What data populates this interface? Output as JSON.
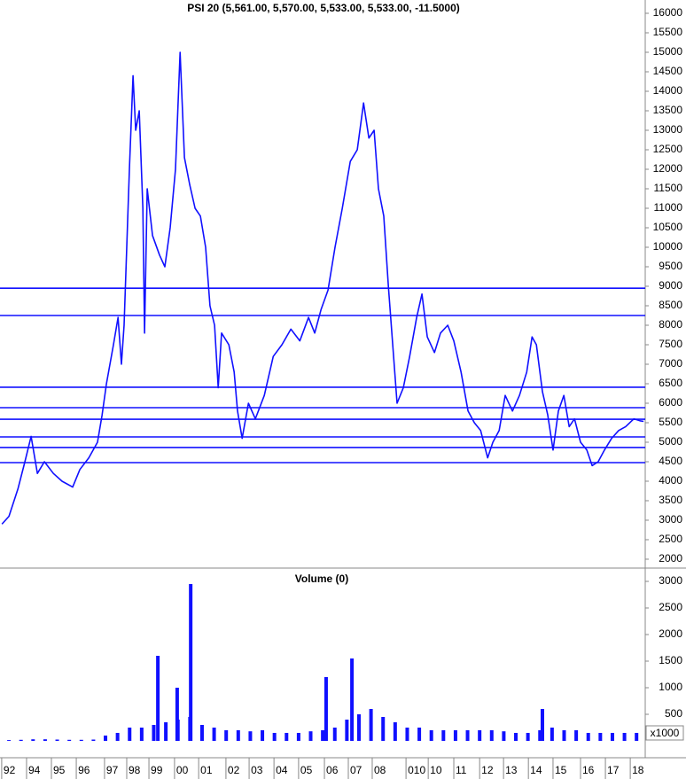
{
  "chart_data": [
    {
      "type": "line",
      "title": "PSI 20 (5,561.00, 5,570.00, 5,533.00, 5,533.00, -11.5000)",
      "color": "#1010ff",
      "x": [
        1991.71,
        1992.0,
        1992.37,
        1992.66,
        1992.92,
        1993.18,
        1993.47,
        1993.84,
        1994.2,
        1994.64,
        1994.94,
        1995.31,
        1995.67,
        1995.86,
        1996.04,
        1996.33,
        1996.52,
        1996.66,
        1996.77,
        1996.99,
        1997.14,
        1997.25,
        1997.4,
        1997.55,
        1997.62,
        1997.73,
        1997.95,
        1998.24,
        1998.46,
        1998.68,
        1998.9,
        1999.09,
        1999.27,
        1999.49,
        1999.71,
        1999.93,
        2000.15,
        2000.33,
        2000.52,
        2000.67,
        2000.81,
        2001.11,
        2001.33,
        2001.47,
        2001.66,
        2001.92,
        2002.21,
        2002.58,
        2002.95,
        2003.31,
        2003.68,
        2004.05,
        2004.41,
        2004.67,
        2004.93,
        2005.22,
        2005.51,
        2005.81,
        2006.14,
        2006.43,
        2006.69,
        2006.91,
        2007.13,
        2007.31,
        2007.53,
        2007.72,
        2007.9,
        2008.08,
        2008.34,
        2008.6,
        2008.89,
        2009.11,
        2009.33,
        2009.63,
        2009.88,
        2010.18,
        2010.43,
        2010.73,
        2011.02,
        2011.28,
        2011.54,
        2011.83,
        2012.05,
        2012.31,
        2012.56,
        2012.86,
        2013.15,
        2013.45,
        2013.67,
        2013.85,
        2014.1,
        2014.32,
        2014.54,
        2014.76,
        2014.99,
        2015.21,
        2015.43,
        2015.68,
        2015.94,
        2016.16,
        2016.41,
        2016.67,
        2016.97,
        2017.26,
        2017.55,
        2017.89,
        2018.14,
        2018.29
      ],
      "values": [
        2900,
        3100,
        3800,
        4500,
        5150,
        4200,
        4500,
        4200,
        4000,
        3850,
        4300,
        4600,
        5000,
        5700,
        6500,
        7500,
        8200,
        7000,
        8000,
        12000,
        14400,
        13000,
        13500,
        11000,
        7800,
        11500,
        10300,
        9800,
        9500,
        10500,
        12000,
        15000,
        12300,
        11600,
        11000,
        10800,
        10000,
        8500,
        8000,
        6400,
        7800,
        7500,
        6800,
        5800,
        5100,
        6000,
        5600,
        6200,
        7200,
        7500,
        7900,
        7600,
        8200,
        7800,
        8400,
        8900,
        10000,
        11000,
        12200,
        12500,
        13700,
        12800,
        13000,
        11500,
        10800,
        9000,
        7500,
        6000,
        6400,
        7200,
        8200,
        8800,
        7700,
        7300,
        7800,
        8000,
        7600,
        6800,
        5800,
        5500,
        5300,
        4600,
        5000,
        5300,
        6200,
        5800,
        6200,
        6800,
        7700,
        7500,
        6300,
        5700,
        4800,
        5800,
        6200,
        5400,
        5600,
        5000,
        4800,
        4400,
        4500,
        4800,
        5100,
        5300,
        5400,
        5600,
        5550,
        5533
      ],
      "hlines": [
        8950,
        8250,
        6410,
        5886,
        5590,
        5136,
        4864,
        4477
      ],
      "xlim": [
        1991.63,
        2018.36
      ],
      "ylim": [
        1795,
        16341
      ],
      "yticks": [
        2000,
        2500,
        3000,
        3500,
        4000,
        4500,
        5000,
        5500,
        6000,
        6500,
        7000,
        7500,
        8000,
        8500,
        9000,
        9500,
        10000,
        10500,
        11000,
        11500,
        12000,
        12500,
        13000,
        13500,
        14000,
        14500,
        15000,
        15500,
        16000
      ]
    },
    {
      "type": "bar",
      "title": "Volume (0)",
      "color": "#1010ff",
      "unit_label": "x1000",
      "x": [
        1992.0,
        1992.5,
        1993.0,
        1993.5,
        1994.0,
        1994.5,
        1995.0,
        1995.5,
        1996.0,
        1996.5,
        1997.0,
        1997.5,
        1998.0,
        1998.17,
        1998.5,
        1998.97,
        1999.0,
        1999.5,
        1999.53,
        2000.0,
        2000.5,
        2001.0,
        2001.5,
        2002.0,
        2002.5,
        2003.0,
        2003.5,
        2004.0,
        2004.5,
        2005.0,
        2005.14,
        2005.5,
        2006.0,
        2006.21,
        2006.5,
        2007.0,
        2007.5,
        2008.0,
        2008.5,
        2009.0,
        2009.5,
        2010.0,
        2010.5,
        2011.0,
        2011.5,
        2012.0,
        2012.5,
        2013.0,
        2013.5,
        2014.0,
        2014.1,
        2014.5,
        2015.0,
        2015.5,
        2016.0,
        2016.5,
        2017.0,
        2017.5,
        2018.0
      ],
      "values": [
        15,
        20,
        30,
        30,
        25,
        20,
        20,
        25,
        100,
        150,
        250,
        250,
        300,
        1600,
        350,
        1000,
        400,
        450,
        2950,
        300,
        250,
        200,
        200,
        180,
        200,
        150,
        150,
        150,
        180,
        200,
        1200,
        250,
        400,
        1550,
        500,
        600,
        450,
        350,
        250,
        250,
        200,
        200,
        200,
        200,
        200,
        200,
        180,
        150,
        150,
        200,
        600,
        250,
        200,
        200,
        150,
        150,
        150,
        150,
        150
      ],
      "xlim": [
        1991.63,
        2018.36
      ],
      "ylim": [
        -317,
        3217
      ],
      "yticks": [
        500,
        1000,
        1500,
        2000,
        2500,
        3000
      ],
      "xticks": [
        {
          "value": 1991.7,
          "label": "92"
        },
        {
          "value": 1992.73,
          "label": "94"
        },
        {
          "value": 1993.76,
          "label": "95"
        },
        {
          "value": 1994.79,
          "label": "96"
        },
        {
          "value": 1995.96,
          "label": "97"
        },
        {
          "value": 1996.88,
          "label": "98"
        },
        {
          "value": 1997.8,
          "label": "99"
        },
        {
          "value": 1998.86,
          "label": "00"
        },
        {
          "value": 1999.86,
          "label": "01"
        },
        {
          "value": 2000.99,
          "label": "02"
        },
        {
          "value": 2001.95,
          "label": "03"
        },
        {
          "value": 2002.98,
          "label": "04"
        },
        {
          "value": 2004.0,
          "label": "05"
        },
        {
          "value": 2005.07,
          "label": "06"
        },
        {
          "value": 2006.06,
          "label": "07"
        },
        {
          "value": 2007.05,
          "label": "08"
        },
        {
          "value": 2008.45,
          "label": "010"
        },
        {
          "value": 2009.37,
          "label": "10"
        },
        {
          "value": 2010.43,
          "label": "11"
        },
        {
          "value": 2011.5,
          "label": "12"
        },
        {
          "value": 2012.49,
          "label": "13"
        },
        {
          "value": 2013.52,
          "label": "14"
        },
        {
          "value": 2014.54,
          "label": "15"
        },
        {
          "value": 2015.68,
          "label": "16"
        },
        {
          "value": 2016.71,
          "label": "17"
        },
        {
          "value": 2017.74,
          "label": "18"
        }
      ]
    }
  ]
}
